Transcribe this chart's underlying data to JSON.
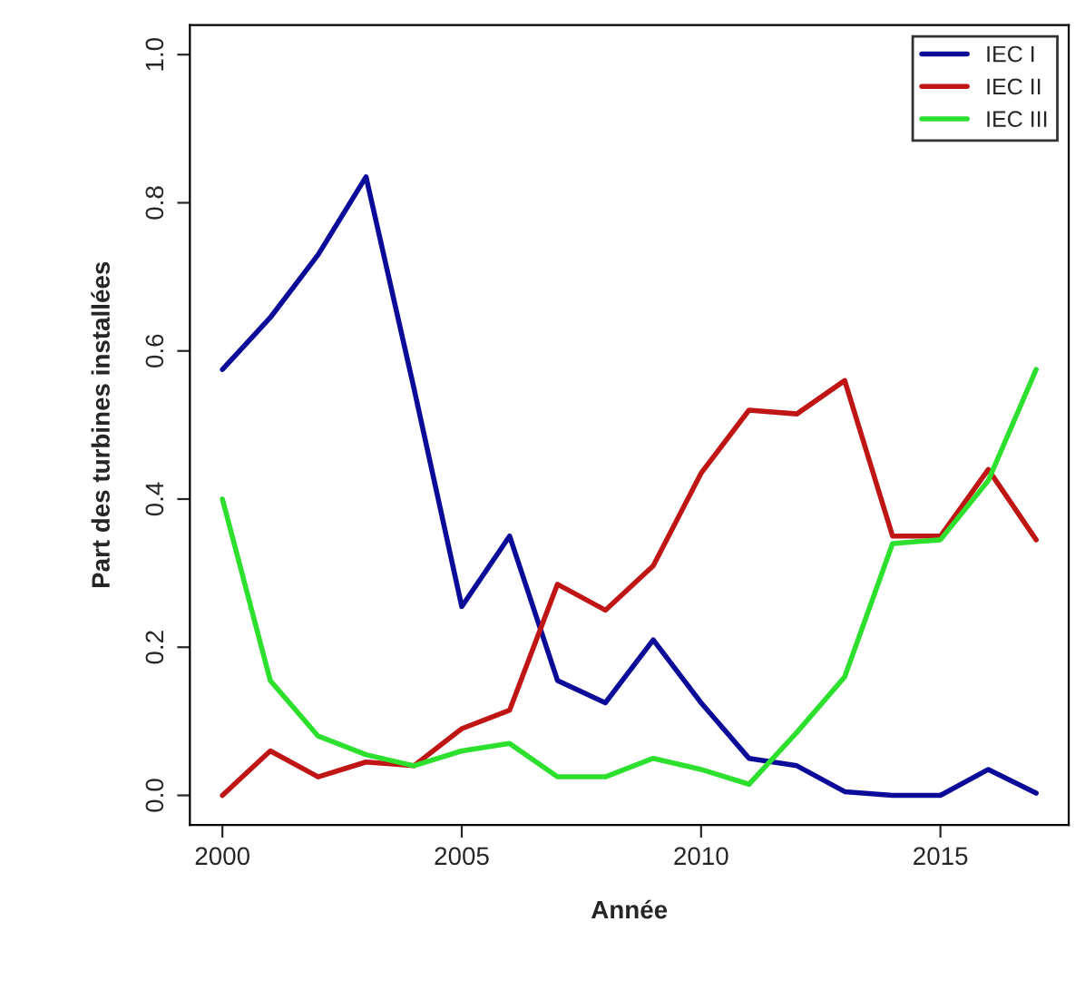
{
  "chart_data": {
    "type": "line",
    "xlabel": "Année",
    "ylabel": "Part des turbines installées",
    "x": [
      2000,
      2001,
      2002,
      2003,
      2004,
      2005,
      2006,
      2007,
      2008,
      2009,
      2010,
      2011,
      2012,
      2013,
      2014,
      2015,
      2016,
      2017
    ],
    "series": [
      {
        "name": "IEC I",
        "color": "#0b0b9a",
        "values": [
          0.575,
          0.645,
          0.73,
          0.835,
          0.55,
          0.255,
          0.35,
          0.155,
          0.125,
          0.21,
          0.125,
          0.05,
          0.04,
          0.005,
          0.0,
          0.0,
          0.035,
          0.003
        ]
      },
      {
        "name": "IEC II",
        "color": "#c01515",
        "values": [
          0.0,
          0.06,
          0.025,
          0.045,
          0.04,
          0.09,
          0.115,
          0.285,
          0.25,
          0.31,
          0.435,
          0.52,
          0.515,
          0.56,
          0.35,
          0.35,
          0.44,
          0.345
        ]
      },
      {
        "name": "IEC III",
        "color": "#2ee02e",
        "values": [
          0.4,
          0.155,
          0.08,
          0.055,
          0.04,
          0.06,
          0.07,
          0.025,
          0.025,
          0.05,
          0.035,
          0.015,
          0.085,
          0.16,
          0.34,
          0.345,
          0.425,
          0.575
        ]
      }
    ],
    "xlim": [
      1999.32,
      2017.68
    ],
    "ylim": [
      -0.04,
      1.04
    ],
    "xticks": [
      2000,
      2005,
      2010,
      2015
    ],
    "yticks": [
      {
        "value": 0,
        "label": "0.0"
      },
      {
        "value": 0.2,
        "label": "0.2"
      },
      {
        "value": 0.4,
        "label": "0.4"
      },
      {
        "value": 0.6,
        "label": "0.6"
      },
      {
        "value": 0.8,
        "label": "0.8"
      },
      {
        "value": 1.0,
        "label": "1.0"
      }
    ],
    "grid": false,
    "legend": "top right",
    "line_style": "solid"
  }
}
